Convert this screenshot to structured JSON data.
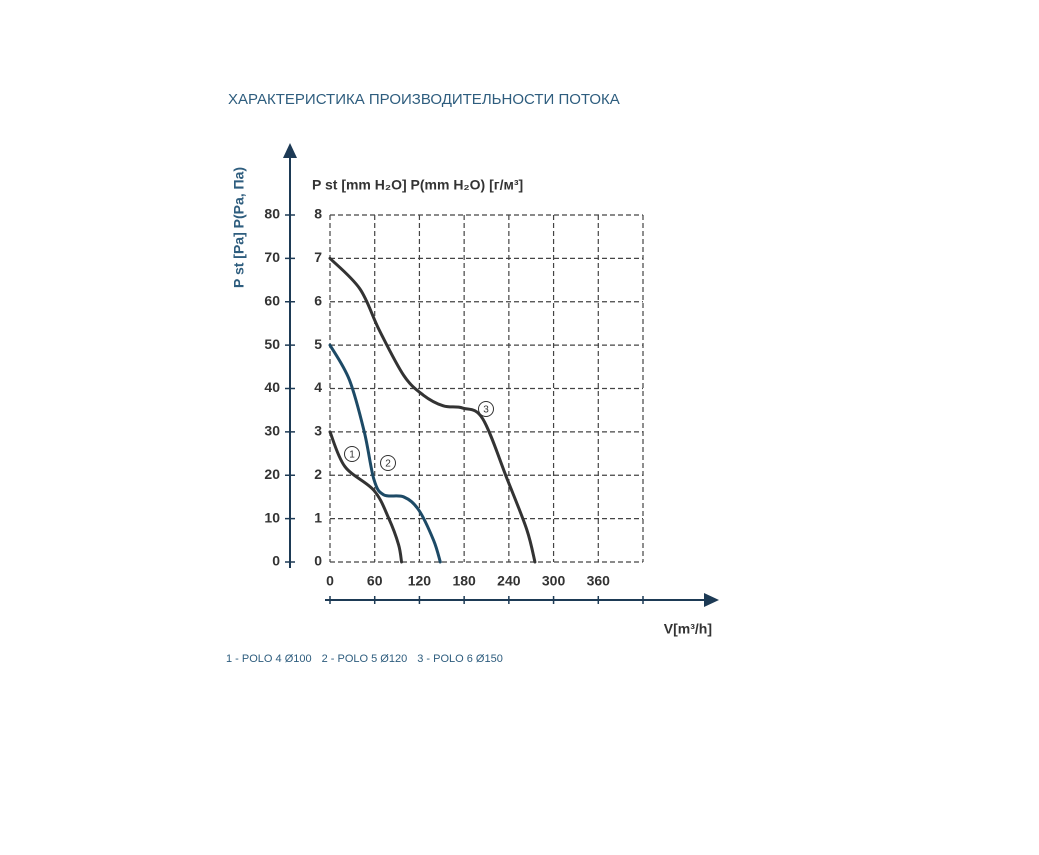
{
  "chart_data": {
    "type": "line",
    "title": "ХАРАКТЕРИСТИКА ПРОИЗВОДИТЕЛЬНОСТИ ПОТОКА",
    "y_label": "P st [mm H₂O] P(mm H₂O) [г/м³]",
    "y2_label": "P st [Pa] P(Pa, Па)",
    "x_label": "V[m³/h]",
    "xlim": [
      0,
      420
    ],
    "xticks": [
      0,
      60,
      120,
      180,
      240,
      300,
      360
    ],
    "ylim": [
      0,
      8
    ],
    "yticks": [
      0,
      1,
      2,
      3,
      4,
      5,
      6,
      7,
      8
    ],
    "y2lim": [
      0,
      80
    ],
    "y2ticks": [
      0,
      10,
      20,
      30,
      40,
      50,
      60,
      70,
      80
    ],
    "grid": true,
    "curve_labels": [
      "1",
      "2",
      "3"
    ],
    "series": [
      {
        "name": "1 - POLO 4 Ø100",
        "color": "#333333",
        "x": [
          0,
          20,
          59,
          79,
          92,
          96
        ],
        "values": [
          3.0,
          2.2,
          1.65,
          1.0,
          0.4,
          0
        ]
      },
      {
        "name": "2 - POLO 5 Ø120",
        "color": "#1d4a66",
        "x": [
          0,
          26,
          46,
          59,
          72,
          99,
          119,
          139,
          148
        ],
        "values": [
          5.0,
          4.2,
          3.0,
          1.9,
          1.55,
          1.5,
          1.2,
          0.5,
          0
        ]
      },
      {
        "name": "3 - POLO 6 Ø150",
        "color": "#333333",
        "x": [
          0,
          40,
          66,
          99,
          125,
          152,
          178,
          205,
          238,
          264,
          275
        ],
        "values": [
          7.0,
          6.3,
          5.35,
          4.3,
          3.85,
          3.6,
          3.55,
          3.3,
          1.9,
          0.75,
          0
        ]
      }
    ]
  }
}
